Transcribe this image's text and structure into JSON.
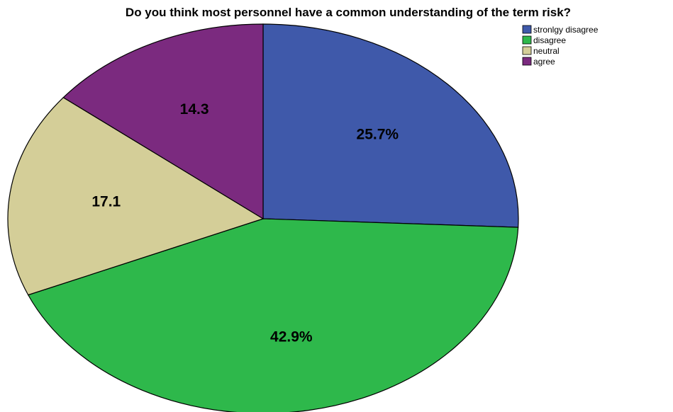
{
  "chart_data": {
    "type": "pie",
    "title": "Do you think most personnel have a common understanding of the term risk?",
    "start_angle_deg": 90,
    "direction": "clockwise",
    "legend_position": "top-right",
    "slices": [
      {
        "name": "stronlgy disagree",
        "value": 25.7,
        "label": "25.7%",
        "color": "#3F59AA"
      },
      {
        "name": "disagree",
        "value": 42.9,
        "label": "42.9%",
        "color": "#2EB84B"
      },
      {
        "name": "neutral",
        "value": 17.1,
        "label": "17.1",
        "color": "#D4CE98"
      },
      {
        "name": "agree",
        "value": 14.3,
        "label": "14.3",
        "color": "#7B2A7F"
      }
    ]
  }
}
